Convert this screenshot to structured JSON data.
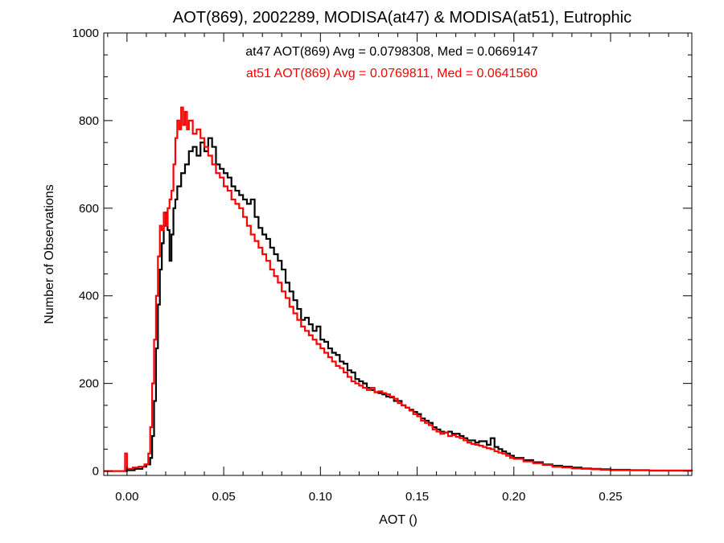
{
  "chart_data": {
    "type": "line",
    "title": "AOT(869), 2002289, MODISA(at47) & MODISA(at51), Eutrophic",
    "xlabel": "AOT ()",
    "ylabel": "Number of Observations",
    "xlim": [
      -0.012,
      0.292
    ],
    "ylim": [
      -10,
      1000
    ],
    "xticks": [
      0.0,
      0.05,
      0.1,
      0.15,
      0.2,
      0.25
    ],
    "xtick_labels": [
      "0.00",
      "0.05",
      "0.10",
      "0.15",
      "0.20",
      "0.25"
    ],
    "yticks": [
      0,
      200,
      400,
      600,
      800,
      1000
    ],
    "ytick_labels": [
      "0",
      "200",
      "400",
      "600",
      "800",
      "1000"
    ],
    "grid": false,
    "step_style": "histogram",
    "series": [
      {
        "name": "at47",
        "color": "#000000",
        "annotation": "at47 AOT(869) Avg = 0.0798308, Med = 0.0669147",
        "points": [
          [
            -0.012,
            0
          ],
          [
            -0.004,
            0
          ],
          [
            0.0,
            2
          ],
          [
            0.004,
            5
          ],
          [
            0.008,
            10
          ],
          [
            0.01,
            15
          ],
          [
            0.012,
            30
          ],
          [
            0.013,
            80
          ],
          [
            0.014,
            160
          ],
          [
            0.015,
            280
          ],
          [
            0.016,
            380
          ],
          [
            0.017,
            460
          ],
          [
            0.018,
            520
          ],
          [
            0.019,
            560
          ],
          [
            0.02,
            590
          ],
          [
            0.021,
            550
          ],
          [
            0.022,
            480
          ],
          [
            0.023,
            540
          ],
          [
            0.024,
            600
          ],
          [
            0.025,
            620
          ],
          [
            0.026,
            650
          ],
          [
            0.028,
            680
          ],
          [
            0.03,
            700
          ],
          [
            0.032,
            730
          ],
          [
            0.034,
            740
          ],
          [
            0.036,
            720
          ],
          [
            0.038,
            750
          ],
          [
            0.04,
            730
          ],
          [
            0.042,
            760
          ],
          [
            0.044,
            740
          ],
          [
            0.046,
            700
          ],
          [
            0.048,
            690
          ],
          [
            0.05,
            680
          ],
          [
            0.052,
            670
          ],
          [
            0.054,
            650
          ],
          [
            0.056,
            640
          ],
          [
            0.058,
            630
          ],
          [
            0.06,
            620
          ],
          [
            0.062,
            610
          ],
          [
            0.064,
            620
          ],
          [
            0.066,
            580
          ],
          [
            0.068,
            555
          ],
          [
            0.07,
            540
          ],
          [
            0.072,
            530
          ],
          [
            0.074,
            510
          ],
          [
            0.076,
            495
          ],
          [
            0.078,
            480
          ],
          [
            0.08,
            460
          ],
          [
            0.082,
            430
          ],
          [
            0.084,
            410
          ],
          [
            0.086,
            390
          ],
          [
            0.088,
            370
          ],
          [
            0.09,
            345
          ],
          [
            0.092,
            350
          ],
          [
            0.094,
            335
          ],
          [
            0.096,
            320
          ],
          [
            0.098,
            330
          ],
          [
            0.1,
            300
          ],
          [
            0.102,
            295
          ],
          [
            0.104,
            280
          ],
          [
            0.106,
            270
          ],
          [
            0.108,
            265
          ],
          [
            0.11,
            250
          ],
          [
            0.112,
            245
          ],
          [
            0.114,
            230
          ],
          [
            0.116,
            225
          ],
          [
            0.118,
            210
          ],
          [
            0.12,
            205
          ],
          [
            0.122,
            200
          ],
          [
            0.124,
            190
          ],
          [
            0.126,
            185
          ],
          [
            0.128,
            180
          ],
          [
            0.13,
            178
          ],
          [
            0.132,
            175
          ],
          [
            0.134,
            170
          ],
          [
            0.136,
            168
          ],
          [
            0.138,
            160
          ],
          [
            0.14,
            160
          ],
          [
            0.142,
            150
          ],
          [
            0.144,
            145
          ],
          [
            0.146,
            140
          ],
          [
            0.148,
            135
          ],
          [
            0.15,
            130
          ],
          [
            0.152,
            120
          ],
          [
            0.154,
            115
          ],
          [
            0.156,
            110
          ],
          [
            0.158,
            100
          ],
          [
            0.16,
            95
          ],
          [
            0.162,
            90
          ],
          [
            0.164,
            88
          ],
          [
            0.166,
            90
          ],
          [
            0.168,
            85
          ],
          [
            0.17,
            85
          ],
          [
            0.172,
            80
          ],
          [
            0.174,
            75
          ],
          [
            0.176,
            70
          ],
          [
            0.178,
            70
          ],
          [
            0.18,
            65
          ],
          [
            0.182,
            68
          ],
          [
            0.184,
            68
          ],
          [
            0.186,
            60
          ],
          [
            0.188,
            75
          ],
          [
            0.19,
            55
          ],
          [
            0.192,
            50
          ],
          [
            0.194,
            45
          ],
          [
            0.196,
            40
          ],
          [
            0.198,
            35
          ],
          [
            0.2,
            30
          ],
          [
            0.205,
            25
          ],
          [
            0.21,
            20
          ],
          [
            0.215,
            15
          ],
          [
            0.22,
            12
          ],
          [
            0.225,
            10
          ],
          [
            0.23,
            8
          ],
          [
            0.235,
            6
          ],
          [
            0.24,
            5
          ],
          [
            0.245,
            4
          ],
          [
            0.25,
            3
          ],
          [
            0.26,
            2
          ],
          [
            0.27,
            1
          ],
          [
            0.28,
            1
          ],
          [
            0.292,
            0
          ]
        ]
      },
      {
        "name": "at51",
        "color": "#ff0000",
        "annotation": "at51 AOT(869) Avg = 0.0769811, Med = 0.0641560",
        "points": [
          [
            -0.012,
            0
          ],
          [
            -0.002,
            0
          ],
          [
            -0.001,
            40
          ],
          [
            0.0,
            5
          ],
          [
            0.003,
            8
          ],
          [
            0.006,
            10
          ],
          [
            0.009,
            15
          ],
          [
            0.011,
            40
          ],
          [
            0.012,
            100
          ],
          [
            0.013,
            200
          ],
          [
            0.014,
            300
          ],
          [
            0.015,
            400
          ],
          [
            0.016,
            490
          ],
          [
            0.017,
            560
          ],
          [
            0.018,
            550
          ],
          [
            0.019,
            590
          ],
          [
            0.02,
            560
          ],
          [
            0.021,
            600
          ],
          [
            0.022,
            620
          ],
          [
            0.023,
            640
          ],
          [
            0.024,
            700
          ],
          [
            0.025,
            760
          ],
          [
            0.026,
            800
          ],
          [
            0.027,
            780
          ],
          [
            0.028,
            830
          ],
          [
            0.029,
            790
          ],
          [
            0.03,
            820
          ],
          [
            0.031,
            780
          ],
          [
            0.032,
            800
          ],
          [
            0.034,
            770
          ],
          [
            0.036,
            780
          ],
          [
            0.038,
            760
          ],
          [
            0.04,
            740
          ],
          [
            0.042,
            720
          ],
          [
            0.044,
            700
          ],
          [
            0.046,
            680
          ],
          [
            0.048,
            670
          ],
          [
            0.05,
            650
          ],
          [
            0.052,
            640
          ],
          [
            0.054,
            620
          ],
          [
            0.056,
            610
          ],
          [
            0.058,
            600
          ],
          [
            0.06,
            580
          ],
          [
            0.062,
            560
          ],
          [
            0.064,
            540
          ],
          [
            0.066,
            525
          ],
          [
            0.068,
            510
          ],
          [
            0.07,
            495
          ],
          [
            0.072,
            480
          ],
          [
            0.074,
            460
          ],
          [
            0.076,
            445
          ],
          [
            0.078,
            430
          ],
          [
            0.08,
            410
          ],
          [
            0.082,
            395
          ],
          [
            0.084,
            375
          ],
          [
            0.086,
            360
          ],
          [
            0.088,
            345
          ],
          [
            0.09,
            330
          ],
          [
            0.092,
            320
          ],
          [
            0.094,
            310
          ],
          [
            0.096,
            300
          ],
          [
            0.098,
            290
          ],
          [
            0.1,
            280
          ],
          [
            0.102,
            270
          ],
          [
            0.104,
            260
          ],
          [
            0.106,
            250
          ],
          [
            0.108,
            240
          ],
          [
            0.11,
            235
          ],
          [
            0.112,
            225
          ],
          [
            0.114,
            215
          ],
          [
            0.116,
            205
          ],
          [
            0.118,
            200
          ],
          [
            0.12,
            195
          ],
          [
            0.122,
            190
          ],
          [
            0.124,
            185
          ],
          [
            0.126,
            190
          ],
          [
            0.128,
            180
          ],
          [
            0.13,
            182
          ],
          [
            0.132,
            178
          ],
          [
            0.134,
            175
          ],
          [
            0.136,
            170
          ],
          [
            0.138,
            165
          ],
          [
            0.14,
            155
          ],
          [
            0.142,
            150
          ],
          [
            0.144,
            145
          ],
          [
            0.146,
            138
          ],
          [
            0.148,
            130
          ],
          [
            0.15,
            125
          ],
          [
            0.152,
            115
          ],
          [
            0.154,
            110
          ],
          [
            0.156,
            105
          ],
          [
            0.158,
            95
          ],
          [
            0.16,
            90
          ],
          [
            0.162,
            85
          ],
          [
            0.164,
            88
          ],
          [
            0.166,
            80
          ],
          [
            0.168,
            82
          ],
          [
            0.17,
            78
          ],
          [
            0.172,
            75
          ],
          [
            0.174,
            70
          ],
          [
            0.176,
            65
          ],
          [
            0.178,
            62
          ],
          [
            0.18,
            60
          ],
          [
            0.182,
            58
          ],
          [
            0.184,
            55
          ],
          [
            0.186,
            52
          ],
          [
            0.188,
            50
          ],
          [
            0.19,
            45
          ],
          [
            0.192,
            42
          ],
          [
            0.194,
            40
          ],
          [
            0.196,
            35
          ],
          [
            0.198,
            30
          ],
          [
            0.2,
            28
          ],
          [
            0.205,
            22
          ],
          [
            0.21,
            18
          ],
          [
            0.215,
            14
          ],
          [
            0.22,
            10
          ],
          [
            0.225,
            8
          ],
          [
            0.23,
            6
          ],
          [
            0.235,
            5
          ],
          [
            0.24,
            4
          ],
          [
            0.245,
            3
          ],
          [
            0.25,
            2
          ],
          [
            0.26,
            2
          ],
          [
            0.27,
            1
          ],
          [
            0.28,
            1
          ],
          [
            0.292,
            0
          ]
        ]
      }
    ]
  }
}
